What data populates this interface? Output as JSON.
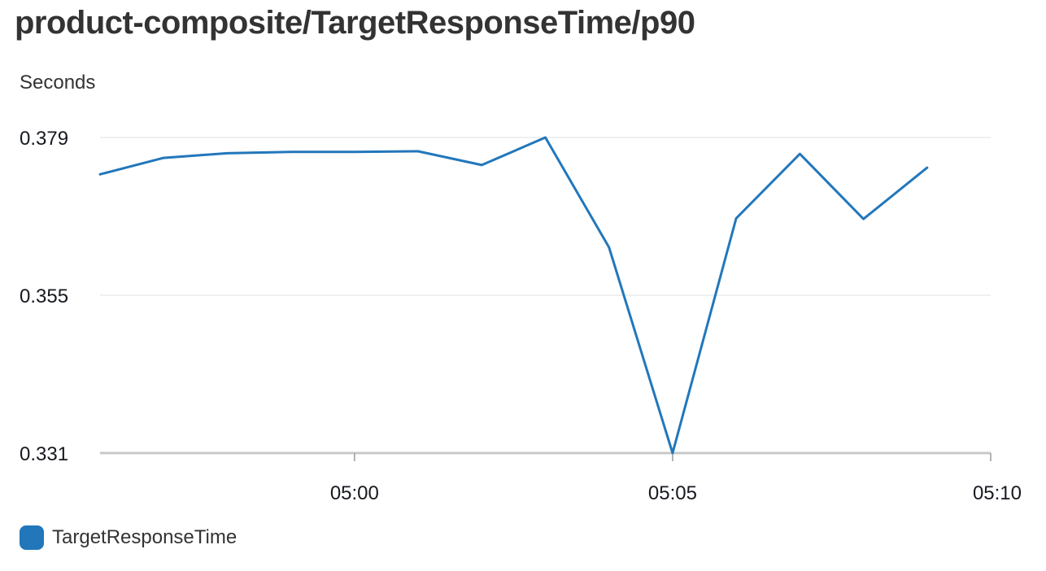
{
  "chart_data": {
    "type": "line",
    "title": "product-composite/TargetResponseTime/p90",
    "ylabel": "Seconds",
    "xlabel": "",
    "y_ticks": [
      "0.379",
      "0.355",
      "0.331"
    ],
    "y_tick_values": [
      0.379,
      0.355,
      0.331
    ],
    "ylim": [
      0.331,
      0.379
    ],
    "x_ticks": [
      "05:00",
      "05:05",
      "05:10"
    ],
    "x_tick_values": [
      300,
      305,
      310
    ],
    "xlim": [
      296,
      310
    ],
    "grid": true,
    "legend_placement": "bottom-left",
    "series": [
      {
        "name": "TargetResponseTime",
        "color": "#2277bb",
        "x": [
          "04:56",
          "04:57",
          "04:58",
          "04:59",
          "05:00",
          "05:01",
          "05:02",
          "05:03",
          "05:04",
          "05:05",
          "05:06",
          "05:07",
          "05:08",
          "05:09"
        ],
        "x_values": [
          296,
          297,
          298,
          299,
          300,
          301,
          302,
          303,
          304,
          305,
          306,
          307,
          308,
          309
        ],
        "values": [
          0.3734,
          0.3759,
          0.3766,
          0.3768,
          0.3768,
          0.3769,
          0.3748,
          0.379,
          0.3623,
          0.331,
          0.3667,
          0.3765,
          0.3666,
          0.3744
        ]
      }
    ]
  }
}
